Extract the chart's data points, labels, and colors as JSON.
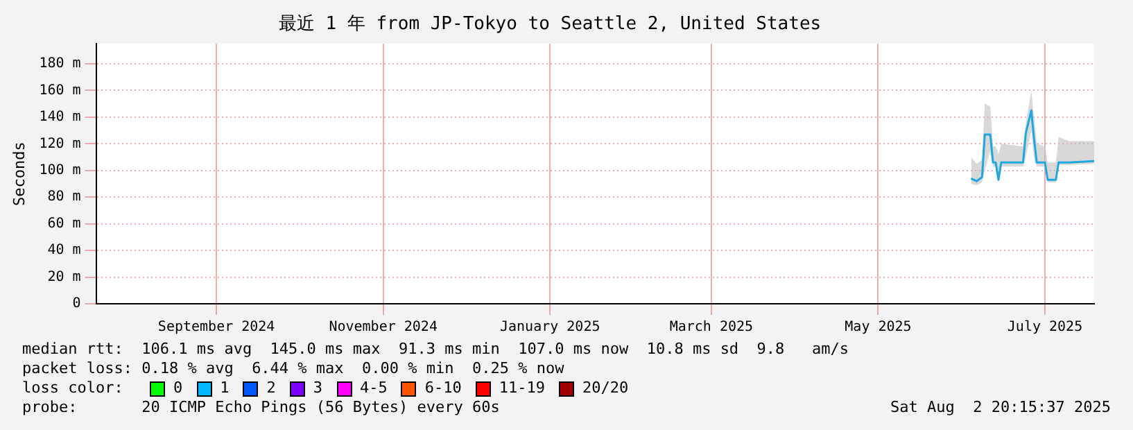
{
  "chart_data": {
    "type": "line",
    "title": "最近 1 年 from JP-Tokyo to Seattle 2, United States",
    "ylabel": "Seconds",
    "x": [
      "2025-06-18",
      "2025-06-20",
      "2025-06-22",
      "2025-06-23",
      "2025-06-25",
      "2025-06-26",
      "2025-06-27",
      "2025-06-28",
      "2025-06-29",
      "2025-07-07",
      "2025-07-08",
      "2025-07-10",
      "2025-07-11",
      "2025-07-12",
      "2025-07-15",
      "2025-07-16",
      "2025-07-19",
      "2025-07-20",
      "2025-07-24",
      "2025-08-02"
    ],
    "series": [
      {
        "color": "#1fa8e0",
        "values": [
          94,
          92,
          95,
          127,
          127,
          106,
          106,
          93,
          106,
          106,
          128,
          145,
          124,
          106,
          106,
          93,
          93,
          106,
          106,
          107
        ],
        "lower": [
          90,
          89,
          91,
          100,
          115,
          103,
          102,
          91,
          103,
          103,
          110,
          130,
          110,
          103,
          103,
          91,
          91,
          104,
          104,
          105
        ],
        "upper": [
          110,
          105,
          108,
          150,
          148,
          118,
          118,
          112,
          120,
          118,
          135,
          160,
          140,
          120,
          118,
          106,
          106,
          125,
          122,
          122
        ]
      }
    ],
    "xlim": [
      "2024-08-02",
      "2025-08-02"
    ],
    "xticks": [
      {
        "value": "2024-09-15",
        "label": "September 2024"
      },
      {
        "value": "2024-11-15",
        "label": "November 2024"
      },
      {
        "value": "2025-01-15",
        "label": "January 2025"
      },
      {
        "value": "2025-03-15",
        "label": "March 2025"
      },
      {
        "value": "2025-05-15",
        "label": "May 2025"
      },
      {
        "value": "2025-07-15",
        "label": "July 2025"
      }
    ],
    "ylim": [
      0,
      195
    ],
    "yticks": [
      0,
      {
        "value": 20,
        "label": "20 m"
      },
      {
        "value": 40,
        "label": "40 m"
      },
      {
        "value": 60,
        "label": "60 m"
      },
      {
        "value": 80,
        "label": "80 m"
      },
      {
        "value": 100,
        "label": "100 m"
      },
      {
        "value": 120,
        "label": "120 m"
      },
      {
        "value": 140,
        "label": "140 m"
      },
      {
        "value": 160,
        "label": "160 m"
      },
      {
        "value": 180,
        "label": "180 m"
      }
    ],
    "grid": true,
    "marker": "none",
    "line_style": "solid",
    "annotations": [
      "median rtt:  106.1 ms avg  145.0 ms max  91.3 ms min  107.0 ms now  10.8 ms sd  9.8   am/s",
      "packet loss: 0.18 % avg  6.44 % max  0.00 % min  0.25 % now",
      "loss color:",
      "0",
      "1",
      "2",
      "3",
      "4-5",
      "6-10",
      "11-19",
      "20/20",
      "probe:       20 ICMP Echo Pings (56 Bytes) every 60s",
      "Sat Aug  2 20:15:37 2025"
    ]
  }
}
